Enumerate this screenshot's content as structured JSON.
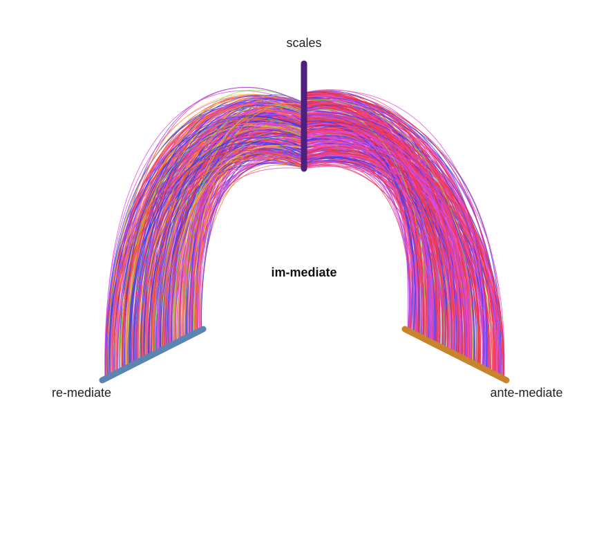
{
  "diagram": {
    "type": "hive-plot",
    "center_label": "im-mediate",
    "axes": [
      {
        "id": "scales",
        "label": "scales",
        "color": "#4e1f7c"
      },
      {
        "id": "re_mediate",
        "label": "re-mediate",
        "color": "#5b84b1"
      },
      {
        "id": "ante_mediate",
        "label": "ante-mediate",
        "color": "#c8842c"
      }
    ],
    "edge_palette": [
      "#ee3340",
      "#e54adf",
      "#f04a7a",
      "#2a3cf2",
      "#ff7a2a",
      "#8a4cf5",
      "#f7c64a",
      "#7be84a",
      "#e02a2a",
      "#c248f0"
    ]
  }
}
